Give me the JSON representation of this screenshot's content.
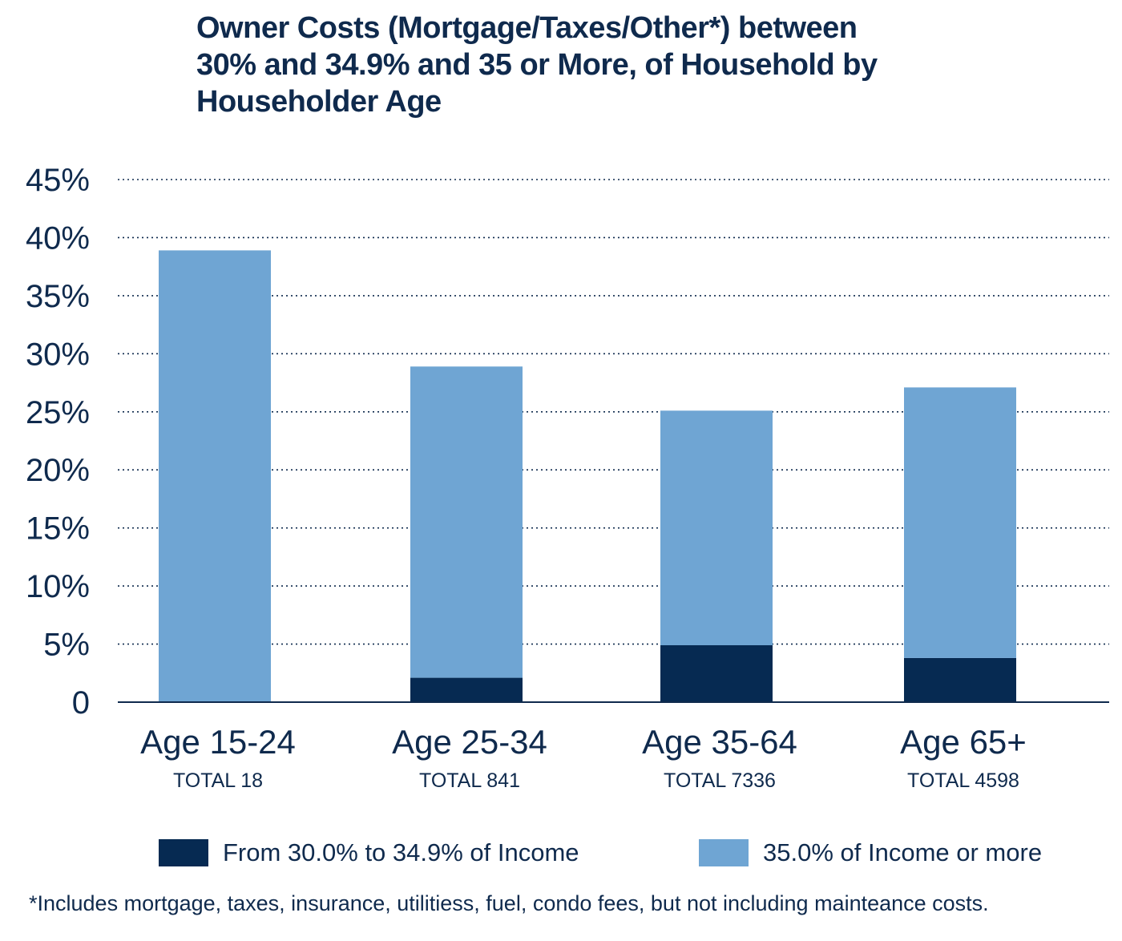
{
  "title_lines": [
    "Owner Costs (Mortgage/Taxes/Other*)  between",
    "30% and 34.9% and 35 or More, of  Household by",
    "Householder Age"
  ],
  "footnote": "*Includes mortgage, taxes, insurance, utilitiess, fuel, condo fees, but not including mainteance costs.",
  "colors": {
    "series_30_34": "#062a52",
    "series_35_plus": "#6fa5d3",
    "text": "#0f2a4d",
    "grid": "#0f2a4d"
  },
  "chart_data": {
    "type": "bar",
    "stacked": true,
    "categories": [
      "Age 15-24",
      "Age 25-34",
      "Age 35-64",
      "Age 65+"
    ],
    "category_totals": [
      "TOTAL 18",
      "TOTAL 841",
      "TOTAL 7336",
      "TOTAL 4598"
    ],
    "series": [
      {
        "name": "From 30.0% to 34.9% of Income",
        "values": [
          0,
          2.1,
          4.9,
          3.8
        ]
      },
      {
        "name": "35.0% of Income or more",
        "values": [
          38.9,
          26.8,
          20.2,
          23.3
        ]
      }
    ],
    "y_ticks": [
      "0",
      "5%",
      "10%",
      "15%",
      "20%",
      "25%",
      "30%",
      "35%",
      "40%",
      "45%"
    ],
    "ylim": [
      0,
      45
    ],
    "y_tick_step": 5,
    "grid": "dotted horizontal",
    "legend_position": "bottom"
  }
}
